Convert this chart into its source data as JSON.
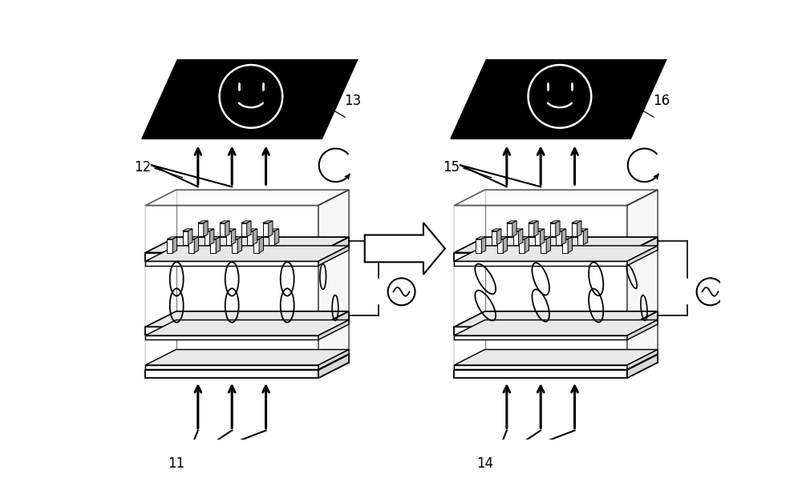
{
  "fig_width": 10.0,
  "fig_height": 6.17,
  "bg_color": "#ffffff",
  "line_color": "#000000",
  "lw_main": 1.3,
  "lw_thin": 0.8,
  "lw_arrow": 2.2
}
